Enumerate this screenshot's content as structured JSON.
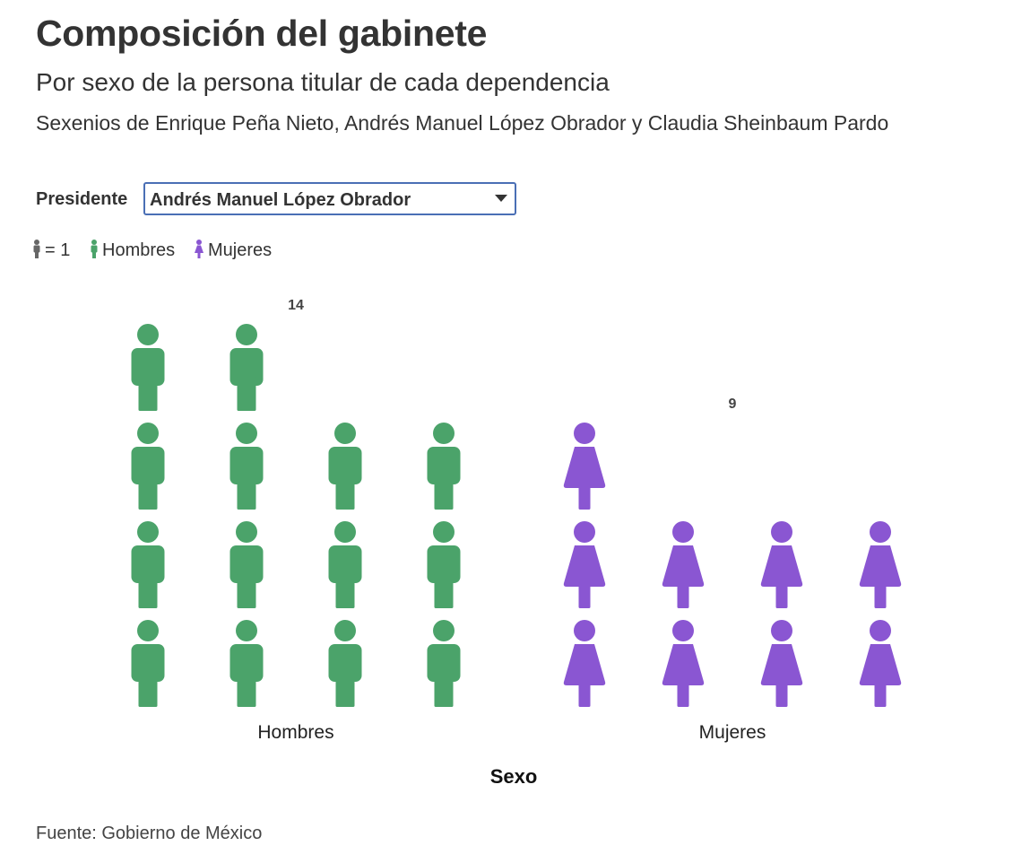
{
  "title": "Composición del gabinete",
  "subtitle": "Por sexo de la persona titular de cada dependencia",
  "description": "Sexenios de Enrique Peña Nieto, Andrés Manuel López Obrador y Claudia Sheinbaum Pardo",
  "control": {
    "label": "Presidente",
    "selected": "Andrés Manuel López Obrador"
  },
  "legend": {
    "unit_label": "= 1",
    "items": [
      {
        "label": "Hombres",
        "color": "#4ba36a",
        "icon": "man-icon"
      },
      {
        "label": "Mujeres",
        "color": "#8a56d2",
        "icon": "woman-icon"
      }
    ],
    "unit_color": "#666666"
  },
  "chart_data": {
    "type": "bar",
    "subtype": "pictogram",
    "categories": [
      "Hombres",
      "Mujeres"
    ],
    "values": [
      14,
      9
    ],
    "value_labels": [
      "14",
      "9"
    ],
    "colors": [
      "#4ba36a",
      "#8a56d2"
    ],
    "icons": [
      "man-icon",
      "woman-icon"
    ],
    "units_per_icon": 1,
    "icons_per_row": 4,
    "xlabel": "Sexo",
    "ylabel": ""
  },
  "source": "Fuente: Gobierno de México"
}
